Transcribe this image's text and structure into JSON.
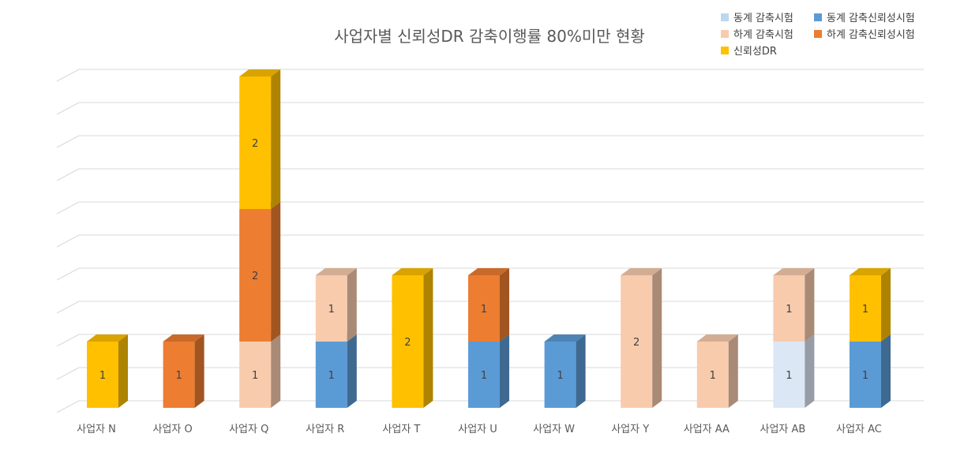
{
  "chart_data": {
    "type": "bar",
    "stacked": true,
    "three_d": true,
    "title": "사업자별 신뢰성DR 감축이행률 80%미만 현황",
    "xlabel": "",
    "ylabel": "",
    "ylim": [
      0,
      5
    ],
    "grid": true,
    "legend_position": "top-right",
    "categories": [
      "사업자 N",
      "사업자 O",
      "사업자 Q",
      "사업자 R",
      "사업자 T",
      "사업자 U",
      "사업자 W",
      "사업자 Y",
      "사업자 AA",
      "사업자 AB",
      "사업자 AC"
    ],
    "series": [
      {
        "name": "동계 감축시험",
        "color": "#dce7f5",
        "legend_color": "#bdd7ee",
        "values": [
          0,
          0,
          0,
          0,
          0,
          0,
          0,
          0,
          0,
          1,
          0
        ]
      },
      {
        "name": "동계 감축신뢰성시험",
        "color": "#5b9bd5",
        "values": [
          0,
          0,
          0,
          1,
          0,
          1,
          1,
          0,
          0,
          0,
          1
        ]
      },
      {
        "name": "하계 감축시험",
        "color": "#f8cbad",
        "values": [
          0,
          0,
          1,
          1,
          0,
          0,
          0,
          2,
          1,
          1,
          0
        ]
      },
      {
        "name": "하계 감축신뢰성시험",
        "color": "#ed7d31",
        "values": [
          0,
          1,
          2,
          0,
          0,
          1,
          0,
          0,
          0,
          0,
          0
        ]
      },
      {
        "name": "신뢰성DR",
        "color": "#ffc000",
        "values": [
          1,
          0,
          2,
          0,
          2,
          0,
          0,
          0,
          0,
          0,
          1
        ]
      }
    ]
  }
}
